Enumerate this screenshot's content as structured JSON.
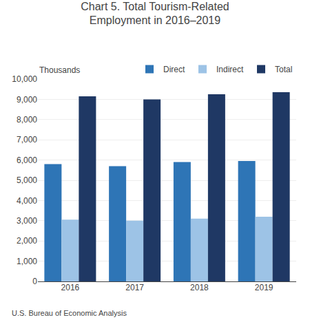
{
  "chart_data": {
    "type": "bar",
    "title": "Chart 5. Total Tourism-Related\nEmployment in 2016–2019",
    "ylabel": "Thousands",
    "categories": [
      "2016",
      "2017",
      "2018",
      "2019"
    ],
    "series": [
      {
        "name": "Direct",
        "color": "#2E75B6",
        "values": [
          5800,
          5700,
          5900,
          5950
        ]
      },
      {
        "name": "Indirect",
        "color": "#9DC3E6",
        "values": [
          3050,
          3000,
          3100,
          3200
        ]
      },
      {
        "name": "Total",
        "color": "#1F3864",
        "values": [
          9150,
          9000,
          9250,
          9350
        ]
      }
    ],
    "ylim": [
      0,
      10000
    ],
    "yticks": [
      0,
      {
        "value": 1000,
        "label": "1,000"
      },
      {
        "value": 2000,
        "label": "2,000"
      },
      {
        "value": 3000,
        "label": "3,000"
      },
      {
        "value": 4000,
        "label": "4,000"
      },
      {
        "value": 5000,
        "label": "5,000"
      },
      {
        "value": 6000,
        "label": "6,000"
      },
      {
        "value": 7000,
        "label": "7,000"
      },
      {
        "value": 8000,
        "label": "8,000"
      },
      {
        "value": 9000,
        "label": "9,000"
      },
      {
        "value": 10000,
        "label": "10,000"
      }
    ],
    "grid": true,
    "legend": "upper right",
    "annotations": [
      "U.S. Bureau of Economic Analysis"
    ]
  }
}
